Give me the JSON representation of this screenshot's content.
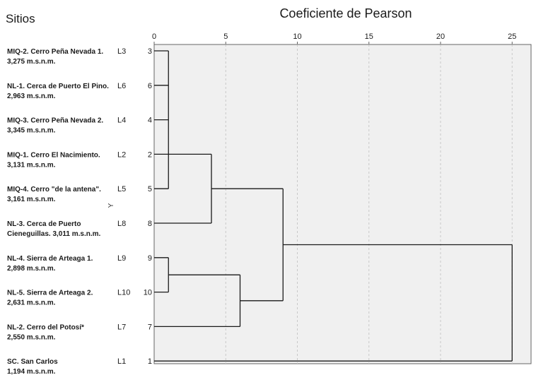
{
  "header": {
    "left_title": "Sitios",
    "title": "Coeficiente de Pearson",
    "y_axis_label": "Y"
  },
  "chart_data": {
    "type": "dendrogram",
    "xlabel": "Coeficiente de Pearson",
    "ylabel": "Y",
    "xlim": [
      0,
      26
    ],
    "x_ticks": [
      0,
      5,
      10,
      15,
      20,
      25
    ],
    "grid": true,
    "leaf_order": [
      "3",
      "6",
      "4",
      "2",
      "5",
      "8",
      "9",
      "10",
      "7",
      "1"
    ],
    "leaves": [
      {
        "id": "3",
        "code": "L3",
        "site_line1": "MIQ-2. Cerro Peña Nevada 1.",
        "site_line2": "3,275 m.s.n.m."
      },
      {
        "id": "6",
        "code": "L6",
        "site_line1": "NL-1. Cerca de Puerto El Pino.",
        "site_line2": "2,963  m.s.n.m."
      },
      {
        "id": "4",
        "code": "L4",
        "site_line1": "MIQ-3. Cerro Peña Nevada 2.",
        "site_line2": "3,345  m.s.n.m."
      },
      {
        "id": "2",
        "code": "L2",
        "site_line1": "MIQ-1. Cerro El Nacimiento.",
        "site_line2": "3,131  m.s.n.m."
      },
      {
        "id": "5",
        "code": "L5",
        "site_line1": "MIQ-4. Cerro \"de la antena\".",
        "site_line2": "3,161  m.s.n.m."
      },
      {
        "id": "8",
        "code": "L8",
        "site_line1": "NL-3. Cerca de Puerto",
        "site_line2": "Cieneguillas. 3,011  m.s.n.m."
      },
      {
        "id": "9",
        "code": "L9",
        "site_line1": "NL-4. Sierra de Arteaga 1.",
        "site_line2": "2,898  m.s.n.m."
      },
      {
        "id": "10",
        "code": "L10",
        "site_line1": "NL-5. Sierra de Arteaga 2.",
        "site_line2": "2,631  m.s.n.m."
      },
      {
        "id": "7",
        "code": "L7",
        "site_line1": "NL-2. Cerro del Potosí*",
        "site_line2": "2,550  m.s.n.m."
      },
      {
        "id": "1",
        "code": "L1",
        "site_line1": "SC. San Carlos",
        "site_line2": "1,194  m.s.n.m."
      }
    ],
    "merges": [
      {
        "members": [
          0,
          1,
          2,
          3,
          4
        ],
        "height": 1
      },
      {
        "members": [
          5
        ],
        "height": 4,
        "with_cluster": true
      },
      {
        "members": [
          6,
          7
        ],
        "height": 1
      },
      {
        "members": [
          8
        ],
        "height": 6,
        "with_cluster": true
      },
      {
        "members": [],
        "height": 9
      },
      {
        "members": [
          9
        ],
        "height": 25,
        "with_cluster": true
      }
    ]
  }
}
